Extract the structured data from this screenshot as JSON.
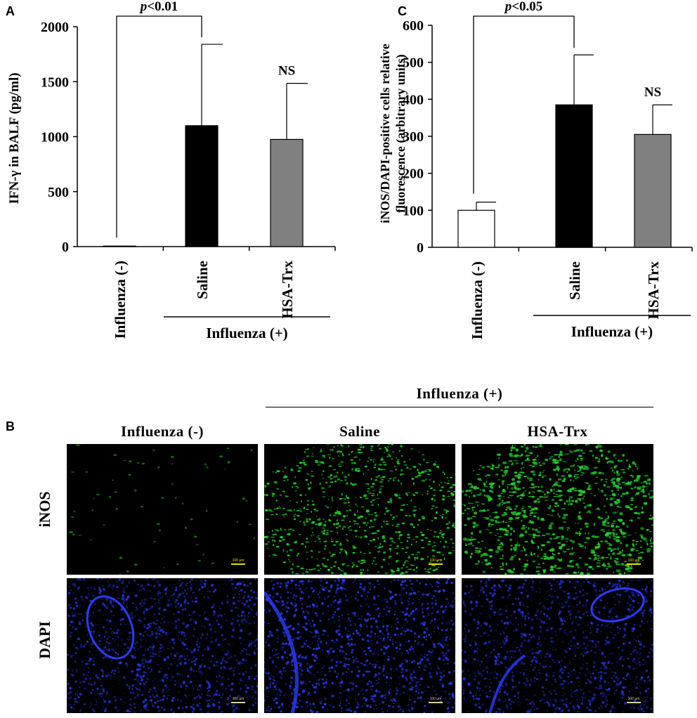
{
  "panel_letters": {
    "a": "A",
    "b": "B",
    "c": "C"
  },
  "chart_data": [
    {
      "type": "bar",
      "panel": "A",
      "ylabel": "IFN-γ in BALF (pg/ml)",
      "xlabel": "",
      "ylim": [
        0,
        2000
      ],
      "yticks": [
        0,
        500,
        1000,
        1500,
        2000
      ],
      "categories": [
        "Influenza (-)",
        "Saline",
        "HSA-Trx"
      ],
      "values": [
        5,
        1100,
        975
      ],
      "errors": [
        0,
        740,
        510
      ],
      "bar_colors": [
        "#ffffff",
        "#000000",
        "#808080"
      ],
      "group_label": "Influenza (+)",
      "significance": {
        "label": "p<0.01",
        "italic_part": "p",
        "rest": "<0.01"
      },
      "annotations": [
        "",
        "",
        "NS"
      ],
      "grid": false
    },
    {
      "type": "bar",
      "panel": "C",
      "ylabel_lines": [
        "iNOS/DAPI-positive cells relative",
        "fluorescence (arbitrary units)"
      ],
      "xlabel": "",
      "ylim": [
        0,
        600
      ],
      "yticks": [
        0,
        100,
        200,
        300,
        400,
        500,
        600
      ],
      "categories": [
        "Influenza (-)",
        "Saline",
        "HSA-Trx"
      ],
      "values": [
        100,
        385,
        305
      ],
      "errors": [
        22,
        135,
        80
      ],
      "bar_colors": [
        "#ffffff",
        "#000000",
        "#808080"
      ],
      "group_label": "Influenza (+)",
      "significance": {
        "label": "p<0.05",
        "italic_part": "p",
        "rest": "<0.05"
      },
      "annotations": [
        "",
        "",
        "NS"
      ],
      "grid": false
    }
  ],
  "panel_b": {
    "group_label": "Influenza (+)",
    "column_headers": [
      "Influenza (-)",
      "Saline",
      "HSA-Trx"
    ],
    "row_labels": [
      "iNOS",
      "DAPI"
    ],
    "scale_bar_label": "100 μm",
    "colors": {
      "inos": "#22d02a",
      "dapi": "#2a3cff",
      "scale_inos": "#e8e000",
      "scale_dapi": "#d8d0a0"
    },
    "inos_signal_level": [
      0.02,
      0.8,
      1.0
    ]
  }
}
